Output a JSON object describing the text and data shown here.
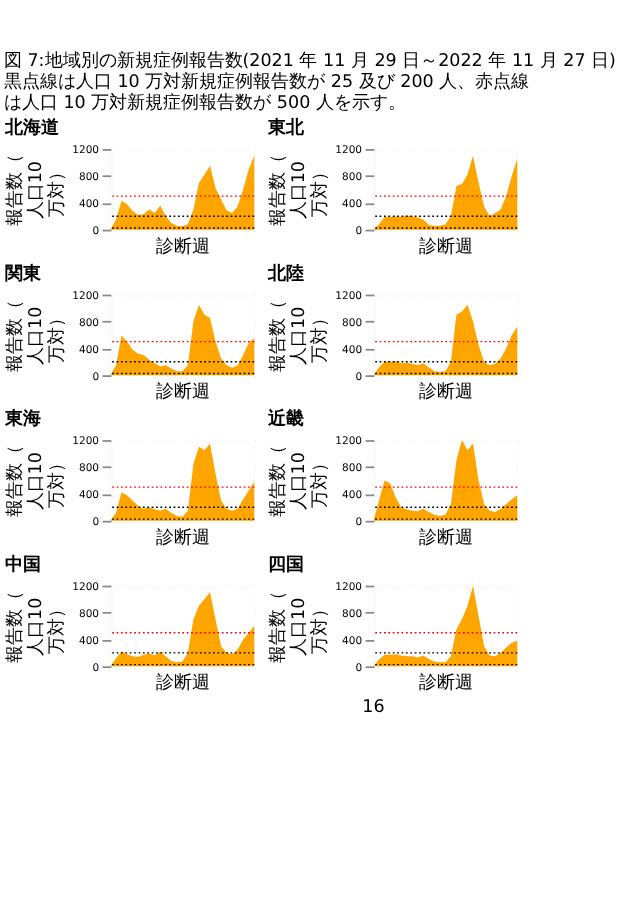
{
  "chart_data": [
    {
      "type": "other",
      "title": "図 7:地域別の新規症例報告数(2021 年 11 月 29 日～2022 年 11 月 27 日)",
      "subtitle": "黒点線は人口 10 万対新規症例報告数が 25 及び 200 人、赤点線は人口 10 万対新規症例報告数が 500 人を示す。",
      "annotations": [
        "16"
      ]
    },
    {
      "type": "area",
      "title": "北海道",
      "xlabel": "診断週",
      "ylabel": "報告数（人口10万対）",
      "categories": [
        null,
        null,
        null,
        null,
        null,
        null,
        null,
        null,
        null,
        null,
        null,
        null,
        null,
        null,
        null,
        null,
        null,
        null,
        null,
        null,
        null,
        null,
        null,
        null,
        null,
        null,
        null
      ],
      "series": [
        {
          "color": "#ffa500",
          "values": [
            0,
            150,
            430,
            380,
            280,
            220,
            230,
            300,
            250,
            360,
            200,
            100,
            60,
            50,
            80,
            300,
            700,
            820,
            950,
            620,
            450,
            290,
            250,
            350,
            600,
            900,
            1100
          ]
        }
      ],
      "ylim": [
        0,
        1200
      ],
      "yticks": [
        0,
        400,
        800,
        1200
      ],
      "grid": true,
      "ref_lines": [
        {
          "axis": "y",
          "value": 25,
          "color": "#000000",
          "line_style": "dotted"
        },
        {
          "axis": "y",
          "value": 200,
          "color": "#000000",
          "line_style": "dotted"
        },
        {
          "axis": "y",
          "value": 500,
          "color": "#ff0000",
          "line_style": "dotted"
        }
      ]
    },
    {
      "type": "area",
      "title": "東北",
      "xlabel": "診断週",
      "ylabel": "報告数（人口10万対）",
      "categories": [
        null,
        null,
        null,
        null,
        null,
        null,
        null,
        null,
        null,
        null,
        null,
        null,
        null,
        null,
        null,
        null,
        null,
        null,
        null,
        null,
        null,
        null,
        null,
        null,
        null,
        null,
        null
      ],
      "series": [
        {
          "color": "#ffa500",
          "values": [
            0,
            80,
            190,
            190,
            200,
            190,
            210,
            200,
            180,
            150,
            70,
            60,
            60,
            80,
            200,
            650,
            680,
            820,
            1100,
            700,
            350,
            200,
            250,
            300,
            500,
            800,
            1050
          ]
        }
      ],
      "ylim": [
        0,
        1200
      ],
      "yticks": [
        0,
        400,
        800,
        1200
      ],
      "grid": true,
      "ref_lines": [
        {
          "axis": "y",
          "value": 25,
          "color": "#000000",
          "line_style": "dotted"
        },
        {
          "axis": "y",
          "value": 200,
          "color": "#000000",
          "line_style": "dotted"
        },
        {
          "axis": "y",
          "value": 500,
          "color": "#ff0000",
          "line_style": "dotted"
        }
      ]
    },
    {
      "type": "area",
      "title": "関東",
      "xlabel": "診断週",
      "ylabel": "報告数（人口10万対）",
      "categories": [
        null,
        null,
        null,
        null,
        null,
        null,
        null,
        null,
        null,
        null,
        null,
        null,
        null,
        null,
        null,
        null,
        null,
        null,
        null,
        null,
        null,
        null,
        null,
        null,
        null,
        null,
        null
      ],
      "series": [
        {
          "color": "#ffa500",
          "values": [
            0,
            150,
            590,
            500,
            380,
            320,
            300,
            230,
            180,
            130,
            150,
            100,
            60,
            60,
            150,
            800,
            1050,
            900,
            850,
            500,
            250,
            150,
            110,
            150,
            300,
            480,
            550
          ]
        }
      ],
      "ylim": [
        0,
        1200
      ],
      "yticks": [
        0,
        400,
        800,
        1200
      ],
      "grid": true,
      "ref_lines": [
        {
          "axis": "y",
          "value": 25,
          "color": "#000000",
          "line_style": "dotted"
        },
        {
          "axis": "y",
          "value": 200,
          "color": "#000000",
          "line_style": "dotted"
        },
        {
          "axis": "y",
          "value": 500,
          "color": "#ff0000",
          "line_style": "dotted"
        }
      ]
    },
    {
      "type": "area",
      "title": "北陸",
      "xlabel": "診断週",
      "ylabel": "報告数（人口10万対）",
      "categories": [
        null,
        null,
        null,
        null,
        null,
        null,
        null,
        null,
        null,
        null,
        null,
        null,
        null,
        null,
        null,
        null,
        null,
        null,
        null,
        null,
        null,
        null,
        null,
        null,
        null,
        null,
        null
      ],
      "series": [
        {
          "color": "#ffa500",
          "values": [
            0,
            120,
            200,
            200,
            210,
            180,
            190,
            170,
            150,
            180,
            120,
            60,
            50,
            60,
            200,
            900,
            950,
            1050,
            800,
            450,
            200,
            150,
            170,
            250,
            400,
            600,
            720
          ]
        }
      ],
      "ylim": [
        0,
        1200
      ],
      "yticks": [
        0,
        400,
        800,
        1200
      ],
      "grid": true,
      "ref_lines": [
        {
          "axis": "y",
          "value": 25,
          "color": "#000000",
          "line_style": "dotted"
        },
        {
          "axis": "y",
          "value": 200,
          "color": "#000000",
          "line_style": "dotted"
        },
        {
          "axis": "y",
          "value": 500,
          "color": "#ff0000",
          "line_style": "dotted"
        }
      ]
    },
    {
      "type": "area",
      "title": "東海",
      "xlabel": "診断週",
      "ylabel": "報告数（人口10万対）",
      "categories": [
        null,
        null,
        null,
        null,
        null,
        null,
        null,
        null,
        null,
        null,
        null,
        null,
        null,
        null,
        null,
        null,
        null,
        null,
        null,
        null,
        null,
        null,
        null,
        null,
        null,
        null,
        null
      ],
      "series": [
        {
          "color": "#ffa500",
          "values": [
            0,
            120,
            420,
            380,
            300,
            220,
            180,
            200,
            170,
            150,
            180,
            120,
            70,
            60,
            150,
            850,
            1100,
            1050,
            1150,
            700,
            300,
            180,
            150,
            180,
            320,
            450,
            580
          ]
        }
      ],
      "ylim": [
        0,
        1200
      ],
      "yticks": [
        0,
        400,
        800,
        1200
      ],
      "grid": true,
      "ref_lines": [
        {
          "axis": "y",
          "value": 25,
          "color": "#000000",
          "line_style": "dotted"
        },
        {
          "axis": "y",
          "value": 200,
          "color": "#000000",
          "line_style": "dotted"
        },
        {
          "axis": "y",
          "value": 500,
          "color": "#ff0000",
          "line_style": "dotted"
        }
      ]
    },
    {
      "type": "area",
      "title": "近畿",
      "xlabel": "診断週",
      "ylabel": "報告数（人口10万対）",
      "categories": [
        null,
        null,
        null,
        null,
        null,
        null,
        null,
        null,
        null,
        null,
        null,
        null,
        null,
        null,
        null,
        null,
        null,
        null,
        null,
        null,
        null,
        null,
        null,
        null,
        null,
        null,
        null
      ],
      "series": [
        {
          "color": "#ffa500",
          "values": [
            0,
            300,
            600,
            560,
            350,
            200,
            170,
            150,
            140,
            180,
            130,
            90,
            70,
            90,
            250,
            900,
            1200,
            1050,
            1150,
            600,
            250,
            150,
            130,
            180,
            250,
            320,
            380
          ]
        }
      ],
      "ylim": [
        0,
        1200
      ],
      "yticks": [
        0,
        400,
        800,
        1200
      ],
      "grid": true,
      "ref_lines": [
        {
          "axis": "y",
          "value": 25,
          "color": "#000000",
          "line_style": "dotted"
        },
        {
          "axis": "y",
          "value": 200,
          "color": "#000000",
          "line_style": "dotted"
        },
        {
          "axis": "y",
          "value": 500,
          "color": "#ff0000",
          "line_style": "dotted"
        }
      ]
    },
    {
      "type": "area",
      "title": "中国",
      "xlabel": "診断週",
      "ylabel": "報告数（人口10万対）",
      "categories": [
        null,
        null,
        null,
        null,
        null,
        null,
        null,
        null,
        null,
        null,
        null,
        null,
        null,
        null,
        null,
        null,
        null,
        null,
        null,
        null,
        null,
        null,
        null,
        null,
        null,
        null,
        null
      ],
      "series": [
        {
          "color": "#ffa500",
          "values": [
            0,
            120,
            220,
            180,
            150,
            140,
            170,
            190,
            160,
            220,
            150,
            80,
            60,
            70,
            200,
            700,
            900,
            1000,
            1100,
            700,
            300,
            200,
            180,
            250,
            400,
            500,
            600
          ]
        }
      ],
      "ylim": [
        0,
        1200
      ],
      "yticks": [
        0,
        400,
        800,
        1200
      ],
      "grid": true,
      "ref_lines": [
        {
          "axis": "y",
          "value": 25,
          "color": "#000000",
          "line_style": "dotted"
        },
        {
          "axis": "y",
          "value": 200,
          "color": "#000000",
          "line_style": "dotted"
        },
        {
          "axis": "y",
          "value": 500,
          "color": "#ff0000",
          "line_style": "dotted"
        }
      ]
    },
    {
      "type": "area",
      "title": "四国",
      "xlabel": "診断週",
      "ylabel": "報告数（人口10万対）",
      "categories": [
        null,
        null,
        null,
        null,
        null,
        null,
        null,
        null,
        null,
        null,
        null,
        null,
        null,
        null,
        null,
        null,
        null,
        null,
        null,
        null,
        null,
        null,
        null,
        null,
        null,
        null,
        null
      ],
      "series": [
        {
          "color": "#ffa500",
          "values": [
            0,
            100,
            170,
            170,
            180,
            160,
            150,
            150,
            130,
            160,
            110,
            70,
            60,
            60,
            150,
            550,
            700,
            900,
            1200,
            750,
            300,
            160,
            150,
            200,
            280,
            350,
            380
          ]
        }
      ],
      "ylim": [
        0,
        1200
      ],
      "yticks": [
        0,
        400,
        800,
        1200
      ],
      "grid": true,
      "ref_lines": [
        {
          "axis": "y",
          "value": 25,
          "color": "#000000",
          "line_style": "dotted"
        },
        {
          "axis": "y",
          "value": 200,
          "color": "#000000",
          "line_style": "dotted"
        },
        {
          "axis": "y",
          "value": 500,
          "color": "#ff0000",
          "line_style": "dotted"
        }
      ]
    }
  ]
}
